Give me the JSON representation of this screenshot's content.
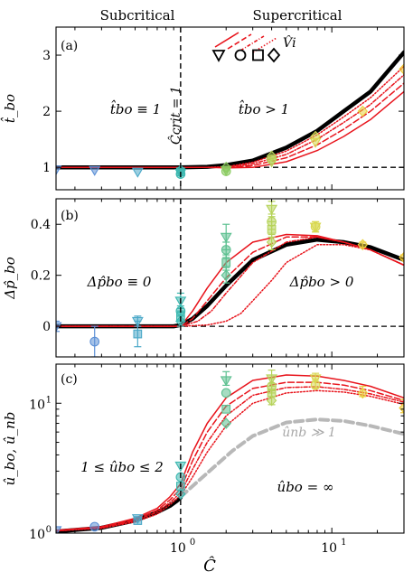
{
  "header": {
    "left": "Subcritical",
    "right": "Supercritical"
  },
  "xlabel": "Ĉ",
  "x_ticks": [
    {
      "v": 1,
      "t": "10",
      "e": "0"
    },
    {
      "v": 10,
      "t": "10",
      "e": "1"
    }
  ],
  "colors": {
    "model": "#e8141c",
    "thick": "#000000",
    "dashgray": "#b8b8b8"
  },
  "chart_data": [
    {
      "id": "a",
      "type": "line",
      "panel_label": "(a)",
      "ylabel": "t̂_bo",
      "xscale": "log",
      "xlim": [
        0.15,
        30
      ],
      "ylim": [
        0.6,
        3.5
      ],
      "yticks": [
        1,
        2,
        3
      ],
      "ytick_labels": [
        "1",
        "2",
        "3"
      ],
      "annotations": {
        "ccrit": "Ĉcrit = 1",
        "left_eq": "t̂bo ≡ 1",
        "right_eq": "t̂bo > 1",
        "legend_v": "V̂i"
      },
      "reference_lines": {
        "x": 1,
        "y": 1
      },
      "series": [
        {
          "style": "thick",
          "x": [
            0.15,
            0.5,
            1,
            1.5,
            2,
            3,
            5,
            8,
            12,
            18,
            30
          ],
          "y": [
            1,
            1,
            1,
            1.01,
            1.04,
            1.12,
            1.35,
            1.65,
            2.0,
            2.35,
            3.05
          ]
        },
        {
          "style": "solid",
          "x": [
            0.15,
            0.5,
            1,
            1.5,
            2,
            3,
            5,
            8,
            12,
            18,
            30
          ],
          "y": [
            1,
            1,
            1,
            1.0,
            0.99,
            1.0,
            1.1,
            1.3,
            1.55,
            1.85,
            2.35
          ]
        },
        {
          "style": "dash",
          "x": [
            0.15,
            0.5,
            1,
            1.5,
            2,
            3,
            5,
            8,
            12,
            18,
            30
          ],
          "y": [
            1,
            1,
            1,
            1.0,
            1.0,
            1.03,
            1.17,
            1.4,
            1.68,
            2.0,
            2.5
          ]
        },
        {
          "style": "dash2",
          "x": [
            0.15,
            0.5,
            1,
            1.5,
            2,
            3,
            5,
            8,
            12,
            18,
            30
          ],
          "y": [
            1,
            1,
            1,
            1.0,
            1.0,
            1.06,
            1.23,
            1.5,
            1.8,
            2.12,
            2.65
          ]
        },
        {
          "style": "dot",
          "x": [
            0.15,
            0.5,
            1,
            1.5,
            2,
            3,
            5,
            8,
            12,
            18,
            30
          ],
          "y": [
            1,
            1,
            1,
            1.0,
            1.01,
            1.09,
            1.29,
            1.58,
            1.9,
            2.24,
            2.8
          ]
        }
      ],
      "points": [
        {
          "m": "tri",
          "c": "#5b8fd6",
          "x": 0.15,
          "y": 0.96
        },
        {
          "m": "tri",
          "c": "#5b8fd6",
          "x": 0.27,
          "y": 0.95
        },
        {
          "m": "tri",
          "c": "#4aa8c8",
          "x": 0.52,
          "y": 0.92
        },
        {
          "m": "tri",
          "c": "#3cb8b0",
          "x": 1.0,
          "y": 0.9
        },
        {
          "m": "circ",
          "c": "#3cb8b0",
          "x": 1.0,
          "y": 0.88
        },
        {
          "m": "sq",
          "c": "#3cb8b0",
          "x": 1.0,
          "y": 0.92
        },
        {
          "m": "dia",
          "c": "#3cb8b0",
          "x": 1.0,
          "y": 0.95
        },
        {
          "m": "tri",
          "c": "#8acb60",
          "x": 2.0,
          "y": 0.95
        },
        {
          "m": "circ",
          "c": "#8acb60",
          "x": 2.0,
          "y": 0.93
        },
        {
          "m": "dia",
          "c": "#8acb60",
          "x": 2.0,
          "y": 1.0
        },
        {
          "m": "tri",
          "c": "#b6d35a",
          "x": 4.0,
          "y": 1.1
        },
        {
          "m": "circ",
          "c": "#b6d35a",
          "x": 4.0,
          "y": 1.14
        },
        {
          "m": "dia",
          "c": "#b6d35a",
          "x": 4.0,
          "y": 1.2
        },
        {
          "m": "tri",
          "c": "#d8d850",
          "x": 7.8,
          "y": 1.45
        },
        {
          "m": "dia",
          "c": "#d8d850",
          "x": 7.8,
          "y": 1.55
        },
        {
          "m": "dia",
          "c": "#e8d040",
          "x": 16,
          "y": 2.0
        },
        {
          "m": "dia",
          "c": "#f0c830",
          "x": 30,
          "y": 2.75
        }
      ]
    },
    {
      "id": "b",
      "type": "line",
      "panel_label": "(b)",
      "ylabel": "Δp̂_bo",
      "xscale": "log",
      "xlim": [
        0.15,
        30
      ],
      "ylim": [
        -0.12,
        0.5
      ],
      "yticks": [
        0,
        0.2,
        0.4
      ],
      "ytick_labels": [
        "0",
        "0.2",
        "0.4"
      ],
      "annotations": {
        "left_eq": "Δp̂bo ≡ 0",
        "right_eq": "Δp̂bo > 0"
      },
      "reference_lines": {
        "x": 1,
        "y": 0
      },
      "series": [
        {
          "style": "thick",
          "x": [
            0.15,
            0.9,
            1,
            1.2,
            1.5,
            2,
            3,
            5,
            8,
            12,
            18,
            30
          ],
          "y": [
            0,
            0,
            0.005,
            0.03,
            0.08,
            0.16,
            0.26,
            0.32,
            0.34,
            0.33,
            0.31,
            0.26
          ]
        },
        {
          "style": "solid",
          "x": [
            0.15,
            1,
            1.2,
            1.5,
            2,
            3,
            5,
            8,
            12,
            18,
            30
          ],
          "y": [
            0,
            0,
            0.06,
            0.15,
            0.25,
            0.33,
            0.36,
            0.355,
            0.33,
            0.3,
            0.24
          ]
        },
        {
          "style": "dash",
          "x": [
            0.15,
            1,
            1.2,
            1.5,
            2,
            3,
            5,
            8,
            12,
            18,
            30
          ],
          "y": [
            0,
            0,
            0.03,
            0.1,
            0.19,
            0.29,
            0.35,
            0.35,
            0.33,
            0.3,
            0.24
          ]
        },
        {
          "style": "dash2",
          "x": [
            0.15,
            1,
            1.3,
            1.6,
            2,
            3,
            5,
            8,
            12,
            18,
            30
          ],
          "y": [
            0,
            0,
            0.02,
            0.06,
            0.13,
            0.25,
            0.33,
            0.35,
            0.33,
            0.3,
            0.24
          ]
        },
        {
          "style": "dot",
          "x": [
            0.15,
            1,
            1.5,
            2,
            2.5,
            3,
            4,
            5,
            8,
            12,
            18,
            30
          ],
          "y": [
            0,
            0,
            0.005,
            0.02,
            0.05,
            0.1,
            0.18,
            0.25,
            0.32,
            0.32,
            0.3,
            0.24
          ]
        }
      ],
      "points": [
        {
          "m": "tri",
          "c": "#5b8fd6",
          "x": 0.15,
          "y": 0.0,
          "e": 0.02
        },
        {
          "m": "circ",
          "c": "#5b8fd6",
          "x": 0.27,
          "y": -0.06,
          "e": 0.06
        },
        {
          "m": "sq",
          "c": "#4aa8c8",
          "x": 0.52,
          "y": -0.03,
          "e": 0.05
        },
        {
          "m": "tri",
          "c": "#4aa8c8",
          "x": 0.52,
          "y": 0.02,
          "e": 0.02
        },
        {
          "m": "tri",
          "c": "#3cb8b0",
          "x": 1.0,
          "y": 0.1,
          "e": 0.03
        },
        {
          "m": "circ",
          "c": "#3cb8b0",
          "x": 1.0,
          "y": 0.06,
          "e": 0.02
        },
        {
          "m": "sq",
          "c": "#3cb8b0",
          "x": 1.0,
          "y": 0.04,
          "e": 0.02
        },
        {
          "m": "dia",
          "c": "#3cb8b0",
          "x": 1.0,
          "y": 0.02,
          "e": 0.02
        },
        {
          "m": "tri",
          "c": "#5cc090",
          "x": 2.0,
          "y": 0.35,
          "e": 0.05
        },
        {
          "m": "circ",
          "c": "#5cc090",
          "x": 2.0,
          "y": 0.3,
          "e": 0.03
        },
        {
          "m": "sq",
          "c": "#5cc090",
          "x": 2.0,
          "y": 0.25,
          "e": 0.03
        },
        {
          "m": "dia",
          "c": "#5cc090",
          "x": 2.0,
          "y": 0.2,
          "e": 0.03
        },
        {
          "m": "tri",
          "c": "#b6d35a",
          "x": 4.0,
          "y": 0.46,
          "e": 0.03
        },
        {
          "m": "circ",
          "c": "#b6d35a",
          "x": 4.0,
          "y": 0.41,
          "e": 0.03
        },
        {
          "m": "sq",
          "c": "#b6d35a",
          "x": 4.0,
          "y": 0.38,
          "e": 0.03
        },
        {
          "m": "dia",
          "c": "#b6d35a",
          "x": 4.0,
          "y": 0.33,
          "e": 0.03
        },
        {
          "m": "tri",
          "c": "#d8d850",
          "x": 7.8,
          "y": 0.39,
          "e": 0.02
        },
        {
          "m": "circ",
          "c": "#d8d850",
          "x": 7.8,
          "y": 0.39,
          "e": 0.02
        },
        {
          "m": "dia",
          "c": "#e8d040",
          "x": 16,
          "y": 0.32,
          "e": 0.01
        },
        {
          "m": "dia",
          "c": "#f0c830",
          "x": 30,
          "y": 0.27,
          "e": 0.01
        }
      ]
    },
    {
      "id": "c",
      "type": "line",
      "panel_label": "(c)",
      "ylabel": "û_bo, û_nb",
      "xscale": "log",
      "yscale": "log",
      "xlim": [
        0.15,
        30
      ],
      "ylim": [
        1,
        20
      ],
      "yticks": [
        1,
        10
      ],
      "ytick_labels": [
        "10|0",
        "10|1"
      ],
      "annotations": {
        "left_eq": "1 ≤ ûbo ≤ 2",
        "right_eq": "ûbo = ∞",
        "gray_label": "ûnb ≫ 1"
      },
      "reference_lines": {
        "x": 1
      },
      "series": [
        {
          "style": "thick",
          "x": [
            0.15,
            0.3,
            0.5,
            0.7,
            0.85,
            0.95,
            1.0
          ],
          "y": [
            1.03,
            1.1,
            1.25,
            1.45,
            1.62,
            1.78,
            1.88
          ]
        },
        {
          "style": "graydash",
          "x": [
            1.0,
            1.3,
            1.7,
            2.2,
            3,
            5,
            8,
            12,
            18,
            30
          ],
          "y": [
            1.9,
            2.5,
            3.3,
            4.3,
            5.6,
            7.1,
            7.5,
            7.3,
            6.7,
            5.8
          ]
        },
        {
          "style": "solid",
          "x": [
            0.15,
            0.3,
            0.5,
            0.7,
            0.85,
            1.0,
            1.2,
            1.5,
            2,
            3,
            5,
            8,
            12,
            18,
            30
          ],
          "y": [
            1.05,
            1.12,
            1.3,
            1.55,
            1.9,
            2.4,
            4.2,
            7,
            11,
            15,
            16.5,
            16.2,
            15,
            13.5,
            11
          ]
        },
        {
          "style": "dash",
          "x": [
            0.15,
            0.3,
            0.5,
            0.7,
            0.85,
            1.0,
            1.2,
            1.5,
            2,
            3,
            5,
            8,
            12,
            18,
            30
          ],
          "y": [
            1.05,
            1.11,
            1.27,
            1.5,
            1.8,
            2.2,
            3.6,
            6,
            9.5,
            13,
            14.5,
            14.5,
            13.8,
            12.5,
            10.5
          ]
        },
        {
          "style": "dash2",
          "x": [
            0.15,
            0.3,
            0.5,
            0.7,
            0.85,
            1.0,
            1.2,
            1.5,
            2,
            3,
            5,
            8,
            12,
            18,
            30
          ],
          "y": [
            1.04,
            1.1,
            1.25,
            1.45,
            1.72,
            2.05,
            3.1,
            5,
            8,
            11.5,
            13.2,
            13.4,
            12.8,
            11.8,
            10.2
          ]
        },
        {
          "style": "dot",
          "x": [
            0.15,
            0.3,
            0.5,
            0.7,
            0.85,
            1.0,
            1.2,
            1.5,
            2,
            3,
            5,
            8,
            12,
            18,
            30
          ],
          "y": [
            1.04,
            1.09,
            1.22,
            1.4,
            1.65,
            1.95,
            2.7,
            4.2,
            6.7,
            10,
            12,
            12.5,
            12.2,
            11.3,
            9.8
          ]
        }
      ],
      "points": [
        {
          "m": "tri",
          "c": "#5b8fd6",
          "x": 0.15,
          "y": 1.05
        },
        {
          "m": "circ",
          "c": "#5b8fd6",
          "x": 0.27,
          "y": 1.12
        },
        {
          "m": "sq",
          "c": "#4aa8c8",
          "x": 0.52,
          "y": 1.25
        },
        {
          "m": "tri",
          "c": "#4aa8c8",
          "x": 0.52,
          "y": 1.3
        },
        {
          "m": "tri",
          "c": "#3cb8b0",
          "x": 1.0,
          "y": 3.3
        },
        {
          "m": "circ",
          "c": "#3cb8b0",
          "x": 1.0,
          "y": 2.7
        },
        {
          "m": "sq",
          "c": "#3cb8b0",
          "x": 1.0,
          "y": 2.3
        },
        {
          "m": "dia",
          "c": "#3cb8b0",
          "x": 1.0,
          "y": 2.0
        },
        {
          "m": "tri",
          "c": "#5cc090",
          "x": 2.0,
          "y": 15,
          "e": 2.5
        },
        {
          "m": "circ",
          "c": "#5cc090",
          "x": 2.0,
          "y": 12
        },
        {
          "m": "sq",
          "c": "#5cc090",
          "x": 2.0,
          "y": 9
        },
        {
          "m": "dia",
          "c": "#5cc090",
          "x": 2.0,
          "y": 7
        },
        {
          "m": "tri",
          "c": "#b6d35a",
          "x": 4.0,
          "y": 15.5,
          "e": 2.5
        },
        {
          "m": "circ",
          "c": "#b6d35a",
          "x": 4.0,
          "y": 13.5,
          "e": 2
        },
        {
          "m": "sq",
          "c": "#b6d35a",
          "x": 4.0,
          "y": 12,
          "e": 1.5
        },
        {
          "m": "dia",
          "c": "#b6d35a",
          "x": 4.0,
          "y": 10.5,
          "e": 1.5
        },
        {
          "m": "tri",
          "c": "#d8d850",
          "x": 7.8,
          "y": 15.5,
          "e": 1.5
        },
        {
          "m": "circ",
          "c": "#d8d850",
          "x": 7.8,
          "y": 13.8,
          "e": 1.5
        },
        {
          "m": "dia",
          "c": "#e8d040",
          "x": 16,
          "y": 12,
          "e": 1.5
        },
        {
          "m": "dia",
          "c": "#f0c830",
          "x": 30,
          "y": 9.2,
          "e": 1.5
        }
      ]
    }
  ]
}
